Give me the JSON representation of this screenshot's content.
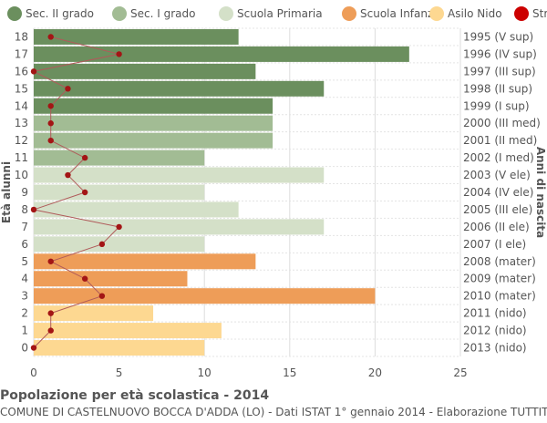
{
  "chart_data": {
    "type": "bar",
    "orientation": "horizontal",
    "title": "Popolazione per età scolastica - 2014",
    "subtitle": "COMUNE DI CASTELNUOVO BOCCA D'ADDA (LO) - Dati ISTAT 1° gennaio 2014 - Elaborazione TUTTITALIA.IT",
    "ylabel": "Età alunni",
    "ylabel_right": "Anni di nascita",
    "xlim": [
      0,
      25
    ],
    "x_ticks": [
      "0",
      "5",
      "10",
      "15",
      "20",
      "25"
    ],
    "grid": true,
    "legend_position": "top",
    "legend": [
      {
        "label": "Sec. II grado",
        "color": "#6b8f5e"
      },
      {
        "label": "Sec. I grado",
        "color": "#a2bc94"
      },
      {
        "label": "Scuola Primaria",
        "color": "#d4e0c8"
      },
      {
        "label": "Scuola Infanzia",
        "color": "#ee9d58"
      },
      {
        "label": "Asilo Nido",
        "color": "#fdd891"
      },
      {
        "label": "Stranieri",
        "color": "#cc0000"
      }
    ],
    "rows": [
      {
        "age": "18",
        "birth": "1995 (V sup)",
        "value": 12,
        "foreign": 1,
        "group": 0
      },
      {
        "age": "17",
        "birth": "1996 (IV sup)",
        "value": 22,
        "foreign": 5,
        "group": 0
      },
      {
        "age": "16",
        "birth": "1997 (III sup)",
        "value": 13,
        "foreign": 0,
        "group": 0
      },
      {
        "age": "15",
        "birth": "1998 (II sup)",
        "value": 17,
        "foreign": 2,
        "group": 0
      },
      {
        "age": "14",
        "birth": "1999 (I sup)",
        "value": 14,
        "foreign": 1,
        "group": 0
      },
      {
        "age": "13",
        "birth": "2000 (III med)",
        "value": 14,
        "foreign": 1,
        "group": 1
      },
      {
        "age": "12",
        "birth": "2001 (II med)",
        "value": 14,
        "foreign": 1,
        "group": 1
      },
      {
        "age": "11",
        "birth": "2002 (I med)",
        "value": 10,
        "foreign": 3,
        "group": 1
      },
      {
        "age": "10",
        "birth": "2003 (V ele)",
        "value": 17,
        "foreign": 2,
        "group": 2
      },
      {
        "age": "9",
        "birth": "2004 (IV ele)",
        "value": 10,
        "foreign": 3,
        "group": 2
      },
      {
        "age": "8",
        "birth": "2005 (III ele)",
        "value": 12,
        "foreign": 0,
        "group": 2
      },
      {
        "age": "7",
        "birth": "2006 (II ele)",
        "value": 17,
        "foreign": 5,
        "group": 2
      },
      {
        "age": "6",
        "birth": "2007 (I ele)",
        "value": 10,
        "foreign": 4,
        "group": 2
      },
      {
        "age": "5",
        "birth": "2008 (mater)",
        "value": 13,
        "foreign": 1,
        "group": 3
      },
      {
        "age": "4",
        "birth": "2009 (mater)",
        "value": 9,
        "foreign": 3,
        "group": 3
      },
      {
        "age": "3",
        "birth": "2010 (mater)",
        "value": 20,
        "foreign": 4,
        "group": 3
      },
      {
        "age": "2",
        "birth": "2011 (nido)",
        "value": 7,
        "foreign": 1,
        "group": 4
      },
      {
        "age": "1",
        "birth": "2012 (nido)",
        "value": 11,
        "foreign": 1,
        "group": 4
      },
      {
        "age": "0",
        "birth": "2013 (nido)",
        "value": 10,
        "foreign": 0,
        "group": 4
      }
    ]
  }
}
